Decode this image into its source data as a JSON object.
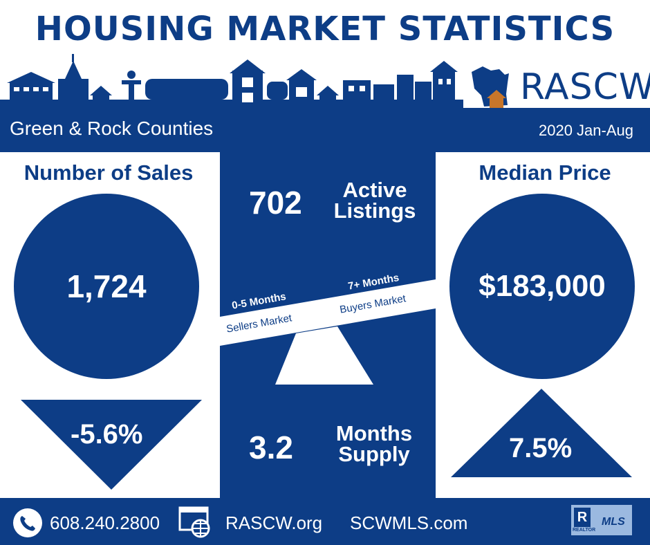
{
  "header": {
    "title": "HOUSING MARKET STATISTICS",
    "logo_text": "RASCW"
  },
  "banner": {
    "region": "Green & Rock Counties",
    "period": "2020 Jan-Aug"
  },
  "sales": {
    "heading": "Number of Sales",
    "value": "1,724",
    "change": "-5.6%",
    "direction": "down"
  },
  "price": {
    "heading": "Median Price",
    "value": "$183,000",
    "change": "7.5%",
    "direction": "up"
  },
  "listings": {
    "value": "702",
    "label_line1": "Active",
    "label_line2": "Listings"
  },
  "scale": {
    "left_title": "0-5 Months",
    "left_sub": "Sellers Market",
    "right_title": "7+ Months",
    "right_sub": "Buyers Market"
  },
  "supply": {
    "value": "3.2",
    "label_line1": "Months",
    "label_line2": "Supply"
  },
  "footer": {
    "phone": "608.240.2800",
    "site1": "RASCW.org",
    "site2": "SCWMLS.com",
    "badge_letter": "R",
    "badge_small": "REALTOR",
    "badge_mls": "MLS"
  },
  "colors": {
    "navy": "#0d3d86",
    "house_orange": "#c8762a",
    "badge_blue": "#9bb9e0"
  },
  "icons": [
    "town-skyline-icon",
    "wisconsin-house-logo-icon",
    "phone-icon",
    "web-globe-icon",
    "realtor-mls-badge-icon"
  ]
}
